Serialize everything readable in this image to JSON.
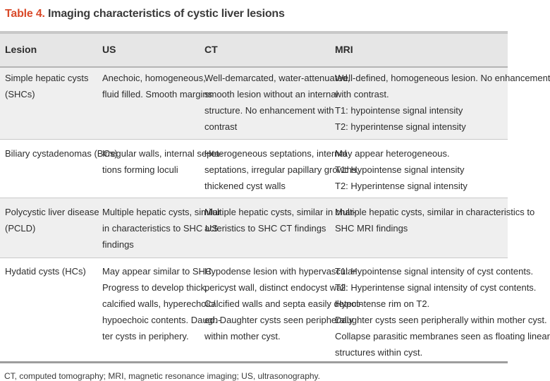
{
  "title": {
    "number": "Table 4.",
    "text": "Imaging characteristics of cystic liver lesions"
  },
  "headers": [
    "Lesion",
    "US",
    "CT",
    "MRI"
  ],
  "rows": [
    {
      "lesion": [
        "Simple hepatic cysts",
        "(SHCs)"
      ],
      "us": [
        "Anechoic, homogeneous,",
        "fluid filled. Smooth margins"
      ],
      "ct": [
        "Well-demarcated, water-attenuated,",
        "smooth lesion without an internal",
        "structure. No enhancement with",
        "contrast"
      ],
      "mri": [
        "Well-defined, homogeneous lesion. No enhancement",
        "with contrast.",
        "T1: hypointense signal intensity",
        "T2: hyperintense signal intensity"
      ]
    },
    {
      "lesion": [
        "Biliary cystadenomas (BCs)"
      ],
      "us": [
        "Irregular walls, internal septa-",
        "tions forming loculi"
      ],
      "ct": [
        "Heterogeneous septations, internal",
        "septations, irregular papillary growths,",
        "thickened cyst walls"
      ],
      "mri": [
        "May appear heterogeneous.",
        "T1: Hypointense signal intensity",
        "T2: Hyperintense signal intensity"
      ]
    },
    {
      "lesion": [
        "Polycystic liver disease",
        "(PCLD)"
      ],
      "us": [
        "Multiple hepatic cysts, similar",
        "in characteristics to SHC US",
        "findings"
      ],
      "ct": [
        "Multiple hepatic cysts, similar in char-",
        "acteristics to SHC CT findings"
      ],
      "mri": [
        "Multiple hepatic cysts, similar in characteristics to",
        "SHC MRI findings"
      ]
    },
    {
      "lesion": [
        "Hydatid cysts (HCs)"
      ],
      "us": [
        "May appear similar to SHC.",
        "Progress to develop thick,",
        "calcified walls, hyperechoic/",
        "hypoechoic contents. Daugh-",
        "ter cysts in periphery."
      ],
      "ct": [
        "Hypodense lesion with hypervascular",
        "pericyst wall, distinct endocyst wall.",
        "Calcified walls and septa easily detect-",
        "ed. Daughter cysts seen peripherally",
        "within mother cyst."
      ],
      "mri": [
        "T1: Hypointense signal intensity of cyst contents.",
        "T2: Hyperintense signal intensity of cyst contents.",
        "Hypointense rim on T2.",
        "Daughter cysts seen peripherally within mother cyst.",
        "Collapse parasitic membranes seen as floating linear",
        "structures within cyst."
      ]
    }
  ],
  "footnote": "CT, computed tomography; MRI, magnetic resonance imaging; US, ultrasonography."
}
